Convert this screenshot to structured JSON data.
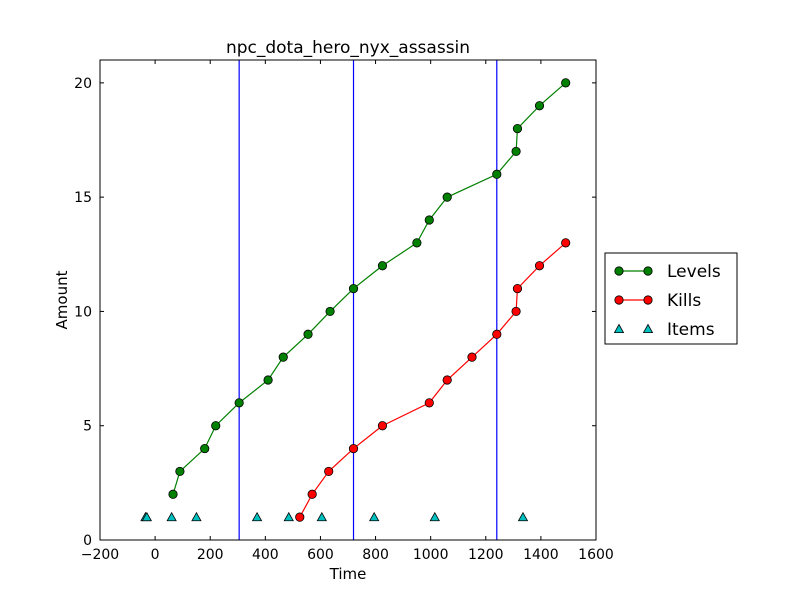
{
  "chart_data": {
    "type": "line",
    "title": "npc_dota_hero_nyx_assassin",
    "xlabel": "Time",
    "ylabel": "Amount",
    "xlim": [
      -200,
      1600
    ],
    "ylim": [
      0,
      21
    ],
    "xticks": [
      -200,
      0,
      200,
      400,
      600,
      800,
      1000,
      1200,
      1400,
      1600
    ],
    "yticks": [
      0,
      5,
      10,
      15,
      20
    ],
    "grid": false,
    "legend_position": "outside-right",
    "vlines": [
      305,
      720,
      1240
    ],
    "vline_color": "#0000ff",
    "series": [
      {
        "name": "Levels",
        "color": "#008000",
        "marker": "circle",
        "line": true,
        "x": [
          65,
          90,
          180,
          220,
          305,
          410,
          465,
          555,
          635,
          720,
          825,
          950,
          995,
          1060,
          1240,
          1310,
          1315,
          1395,
          1490
        ],
        "y": [
          2,
          3,
          4,
          5,
          6,
          7,
          8,
          9,
          10,
          11,
          12,
          13,
          14,
          15,
          16,
          17,
          18,
          19,
          20
        ]
      },
      {
        "name": "Kills",
        "color": "#ff0000",
        "marker": "circle",
        "line": true,
        "x": [
          525,
          570,
          630,
          720,
          825,
          995,
          1060,
          1150,
          1240,
          1310,
          1315,
          1395,
          1490
        ],
        "y": [
          1,
          2,
          3,
          4,
          5,
          6,
          7,
          8,
          9,
          10,
          11,
          12,
          13
        ]
      },
      {
        "name": "Items",
        "color": "#00bfbf",
        "marker": "triangle",
        "line": false,
        "x": [
          -35,
          -30,
          60,
          150,
          370,
          485,
          605,
          795,
          1015,
          1335
        ],
        "y": [
          1,
          1,
          1,
          1,
          1,
          1,
          1,
          1,
          1,
          1
        ]
      }
    ]
  }
}
